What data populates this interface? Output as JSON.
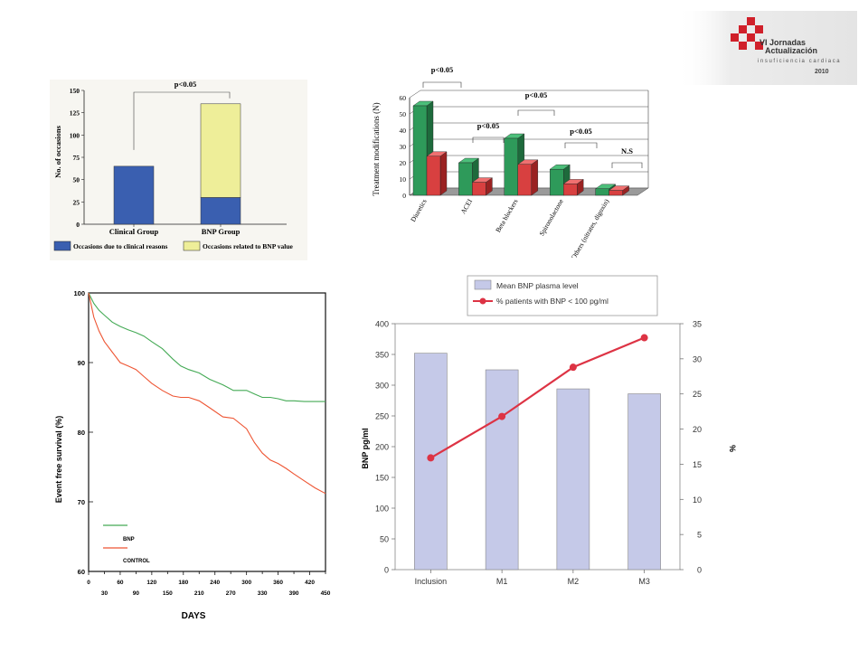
{
  "logo": {
    "line1": "VI Jornadas",
    "line2": "Actualización",
    "line3": "insuficiencia cardiaca",
    "year": "2010",
    "colors": {
      "red": "#d0202a",
      "grey": "#888888"
    }
  },
  "chart_data": [
    {
      "type": "bar",
      "stacked": true,
      "categories": [
        "Clinical Group",
        "BNP Group"
      ],
      "series": [
        {
          "name": "Occasions due to clinical reasons",
          "values": [
            65,
            30
          ],
          "color": "#3a5fb0"
        },
        {
          "name": "Occasions related to BNP value",
          "values": [
            0,
            105
          ],
          "color": "#eeee99"
        }
      ],
      "ylabel": "No. of occasions",
      "ylim": [
        0,
        150
      ],
      "yticks": [
        0,
        25,
        50,
        75,
        100,
        125,
        150
      ],
      "annotation": "p<0.05",
      "legend": "bottom",
      "grid": false
    },
    {
      "type": "bar",
      "style": "3d",
      "categories": [
        "Diuretics",
        "ACEI",
        "Beta blockers",
        "Spironolactone",
        "Others (nitrates, digoxin)"
      ],
      "series": [
        {
          "name": "",
          "values": [
            55,
            20,
            35,
            16,
            4
          ],
          "color": "#2e9a5a"
        },
        {
          "name": "",
          "values": [
            24,
            8,
            19,
            7,
            3
          ],
          "color": "#d84040"
        }
      ],
      "ylabel": "Treatment modifications (N)",
      "ylim": [
        0,
        60
      ],
      "yticks": [
        0,
        10,
        20,
        30,
        40,
        50,
        60
      ],
      "annotations": [
        "p<0.05",
        "p<0.05",
        "p<0.05",
        "p<0.05",
        "N.S"
      ],
      "grid": true
    },
    {
      "type": "line",
      "series": [
        {
          "name": "BNP",
          "color": "#44aa55",
          "x": [
            0,
            10,
            20,
            30,
            45,
            60,
            75,
            90,
            105,
            120,
            140,
            160,
            175,
            190,
            210,
            230,
            255,
            275,
            300,
            315,
            330,
            345,
            360,
            375,
            390,
            410,
            430,
            450
          ],
          "y": [
            100,
            98.5,
            97.5,
            96.8,
            95.8,
            95.2,
            94.7,
            94.3,
            93.8,
            93.0,
            92.0,
            90.5,
            89.5,
            89.0,
            88.5,
            87.6,
            86.8,
            86.0,
            86.0,
            85.5,
            85.0,
            85.0,
            84.8,
            84.5,
            84.5,
            84.4,
            84.4,
            84.4
          ]
        },
        {
          "name": "CONTROL",
          "color": "#ee5533",
          "x": [
            0,
            10,
            20,
            30,
            45,
            60,
            75,
            90,
            105,
            120,
            140,
            160,
            175,
            190,
            210,
            230,
            255,
            275,
            300,
            315,
            330,
            345,
            360,
            375,
            390,
            410,
            430,
            450
          ],
          "y": [
            100,
            96.5,
            94.5,
            93.0,
            91.5,
            90.0,
            89.5,
            89.0,
            88.0,
            87.0,
            86.0,
            85.2,
            85.0,
            85.0,
            84.5,
            83.5,
            82.2,
            82.0,
            80.5,
            78.5,
            77.0,
            76.0,
            75.5,
            74.8,
            74.0,
            73.0,
            72.0,
            71.2
          ]
        }
      ],
      "xlabel": "DAYS",
      "ylabel": "Event free survival (%)",
      "xlim": [
        0,
        450
      ],
      "ylim": [
        60,
        100
      ],
      "xticks_top": [
        0,
        60,
        120,
        180,
        240,
        300,
        360,
        420
      ],
      "xticks_bottom": [
        30,
        90,
        150,
        210,
        270,
        330,
        390,
        450
      ],
      "yticks": [
        60,
        70,
        80,
        90,
        100
      ],
      "legend": "bottom-left",
      "grid": false
    },
    {
      "type": "bar",
      "categories": [
        "Inclusion",
        "M1",
        "M2",
        "M3"
      ],
      "series": [
        {
          "name": "Mean BNP plasma level",
          "type": "bar",
          "axis": "left",
          "values": [
            352,
            325,
            294,
            286
          ],
          "color": "#c5c9e8"
        },
        {
          "name": "% patients with BNP < 100 pg/ml",
          "type": "line",
          "axis": "right",
          "values": [
            15.9,
            21.8,
            28.8,
            33.0
          ],
          "color": "#dd3344"
        }
      ],
      "ylabel": "BNP pg/ml",
      "y2label": "%",
      "ylim": [
        0,
        400
      ],
      "y2lim": [
        0,
        35
      ],
      "yticks": [
        0,
        50,
        100,
        150,
        200,
        250,
        300,
        350,
        400
      ],
      "y2ticks": [
        0,
        5,
        10,
        15,
        20,
        25,
        30,
        35
      ],
      "legend": "top",
      "grid": false
    }
  ]
}
